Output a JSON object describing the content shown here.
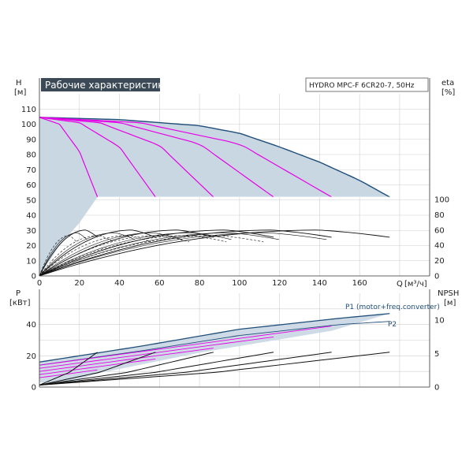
{
  "chart_data": {
    "type": "line",
    "title": "Рабочие характеристики",
    "model": "HYDRO MPC-F 6CR20-7, 50Hz",
    "colors": {
      "envelope_fill": "#c9d7e3",
      "max_curve": "#1f4e79",
      "speed_curves": "#e600e6",
      "efficiency_curves": "#111111",
      "title_bg": "#3b4a56",
      "title_text": "#ffffff"
    },
    "head_panel": {
      "ylabel": "H",
      "yunit": "[м]",
      "y2label": "eta",
      "y2unit": "[%]",
      "xlabel": "Q",
      "xunit": "[м³/ч]",
      "ylim": [
        0,
        120
      ],
      "y2lim": [
        0,
        100
      ],
      "xlim": [
        0,
        195
      ],
      "y_ticks": [
        "0",
        "10",
        "20",
        "30",
        "40",
        "50",
        "60",
        "70",
        "80",
        "90",
        "100",
        "110"
      ],
      "y2_ticks": [
        "0",
        "20",
        "40",
        "60",
        "80",
        "100"
      ],
      "x_ticks": [
        "0",
        "20",
        "40",
        "60",
        "80",
        "100",
        "120",
        "140",
        "160"
      ],
      "head_max_curve": {
        "x": [
          0,
          40,
          80,
          100,
          120,
          140,
          160,
          175
        ],
        "y": [
          104.5,
          103,
          99,
          94,
          85,
          75,
          63,
          52
        ]
      },
      "speed_curves": [
        {
          "x": [
            0,
            10,
            20,
            29
          ],
          "y": [
            104.5,
            100,
            82,
            52
          ]
        },
        {
          "x": [
            0,
            20,
            40,
            58
          ],
          "y": [
            104.5,
            101,
            85,
            52
          ]
        },
        {
          "x": [
            0,
            30,
            60,
            87
          ],
          "y": [
            104.5,
            101,
            86,
            52
          ]
        },
        {
          "x": [
            0,
            40,
            80,
            117
          ],
          "y": [
            104.5,
            101,
            87,
            52
          ]
        },
        {
          "x": [
            0,
            50,
            100,
            146
          ],
          "y": [
            104.5,
            101,
            87,
            52
          ]
        }
      ],
      "min_head": 52,
      "efficiency_pumps": [
        1,
        2,
        3,
        4,
        5,
        6
      ],
      "efficiency_peak": 60
    },
    "power_panel": {
      "ylabel": "P",
      "yunit": "[кВт]",
      "y2label": "NPSH",
      "y2unit": "[м]",
      "ylim": [
        0,
        60
      ],
      "y2lim": [
        0,
        14
      ],
      "y_ticks": [
        "0",
        "20",
        "40"
      ],
      "y2_ticks": [
        "0",
        "5",
        "10"
      ],
      "series": [
        {
          "name": "P1 (motor+freq.converter)",
          "x": [
            0,
            50,
            100,
            150,
            175
          ],
          "y": [
            16,
            26,
            37,
            44,
            47
          ]
        },
        {
          "name": "P2",
          "x": [
            0,
            50,
            100,
            150,
            175
          ],
          "y": [
            14,
            23,
            33,
            40,
            42
          ]
        }
      ],
      "npsh_curves": [
        {
          "x": [
            0,
            15,
            29
          ],
          "y": [
            0.3,
            2.2,
            5.2
          ]
        },
        {
          "x": [
            0,
            30,
            58
          ],
          "y": [
            0.3,
            2.2,
            5.2
          ]
        },
        {
          "x": [
            0,
            44,
            87
          ],
          "y": [
            0.3,
            2.2,
            5.2
          ]
        },
        {
          "x": [
            0,
            58,
            117
          ],
          "y": [
            0.3,
            2.2,
            5.2
          ]
        },
        {
          "x": [
            0,
            73,
            146
          ],
          "y": [
            0.3,
            2.2,
            5.2
          ]
        },
        {
          "x": [
            0,
            88,
            175
          ],
          "y": [
            0.3,
            2.2,
            5.2
          ]
        }
      ]
    }
  }
}
